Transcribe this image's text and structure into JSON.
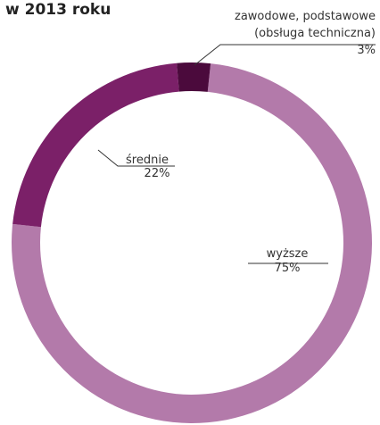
{
  "chart_data": {
    "type": "donut",
    "title": "w 2013 roku",
    "categories": [
      "wyższe",
      "średnie",
      "zawodowe, podstawowe (obsługa techniczna)"
    ],
    "values": [
      75,
      22,
      3
    ],
    "value_labels": [
      "75%",
      "22%",
      "3%"
    ],
    "colors": [
      "#b37aaa",
      "#7b2068",
      "#4b0a3c"
    ]
  }
}
